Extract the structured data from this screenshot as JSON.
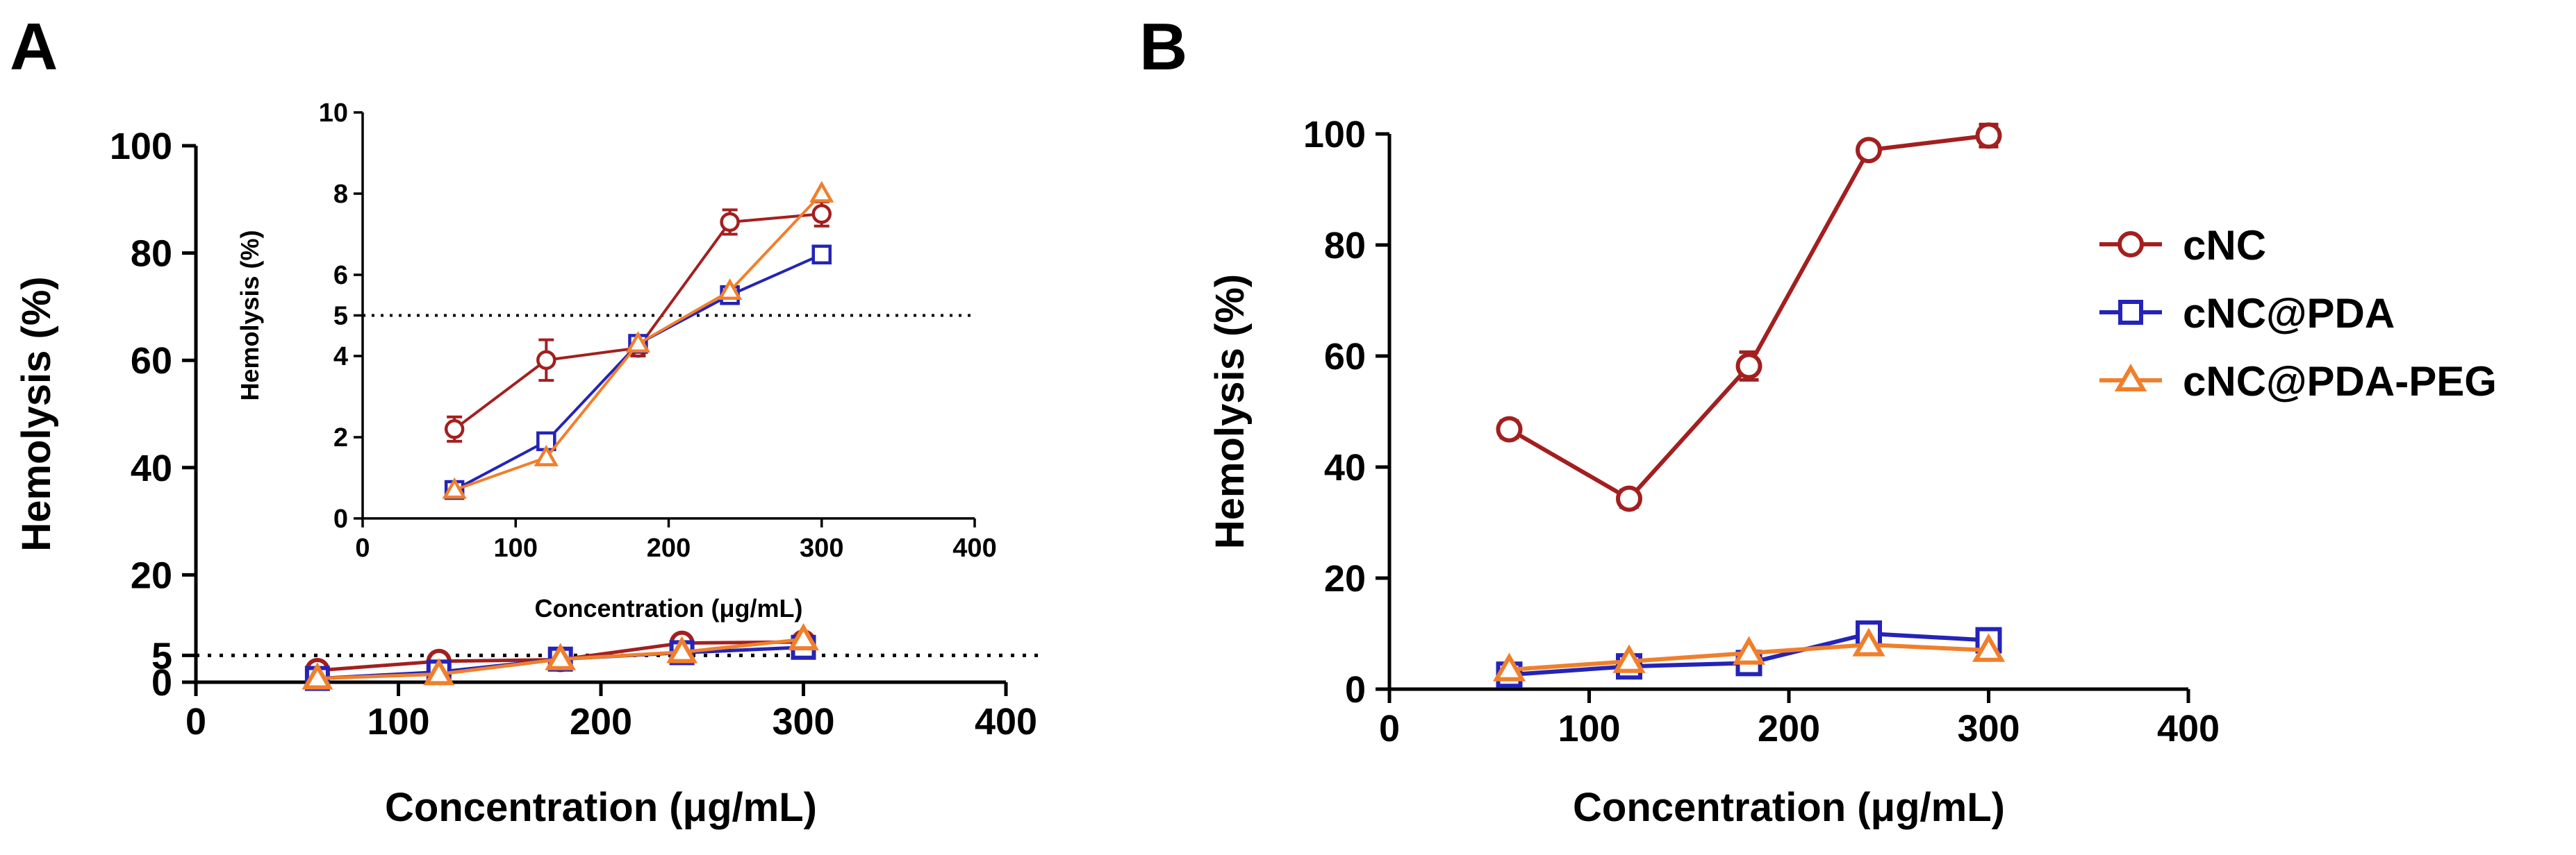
{
  "figure": {
    "colors": {
      "cNC": "#a31f1f",
      "cNC@PDA": "#2424b8",
      "cNC@PDA-PEG": "#f07f2c",
      "threshold": "#000000"
    },
    "legend": [
      {
        "name": "cNC",
        "marker": "circle"
      },
      {
        "name": "cNC@PDA",
        "marker": "square"
      },
      {
        "name": "cNC@PDA-PEG",
        "marker": "triangle"
      }
    ]
  },
  "chart_data": [
    {
      "id": "A",
      "panel_label": "A",
      "type": "line",
      "xlabel": "Concentration (μg/mL)",
      "ylabel": "Hemolysis (%)",
      "xlim": [
        0,
        400
      ],
      "ylim": [
        0,
        100
      ],
      "xticks": [
        "0",
        "100",
        "200",
        "300",
        "400"
      ],
      "xtick_values": [
        0,
        100,
        200,
        300,
        400
      ],
      "yticks": [
        "0",
        "5",
        "20",
        "40",
        "60",
        "80",
        "100"
      ],
      "ytick_values": [
        0,
        5,
        20,
        40,
        60,
        80,
        100
      ],
      "threshold": 5,
      "x": [
        60,
        120,
        180,
        240,
        300
      ],
      "series": [
        {
          "name": "cNC",
          "marker": "circle",
          "values": [
            2.2,
            3.9,
            4.2,
            7.3,
            7.5
          ],
          "errors": [
            0.3,
            0.5,
            0.2,
            0.3,
            0.3
          ]
        },
        {
          "name": "cNC@PDA",
          "marker": "square",
          "values": [
            0.7,
            1.9,
            4.3,
            5.5,
            6.5
          ],
          "errors": [
            0,
            0,
            0,
            0,
            0
          ]
        },
        {
          "name": "cNC@PDA-PEG",
          "marker": "triangle",
          "values": [
            0.7,
            1.5,
            4.3,
            5.6,
            8.0
          ],
          "errors": [
            0,
            0,
            0,
            0,
            0
          ]
        }
      ]
    },
    {
      "id": "A-inset",
      "type": "line",
      "xlabel": "Concentration (μg/mL)",
      "ylabel": "Hemolysis (%)",
      "xlim": [
        0,
        400
      ],
      "ylim": [
        0,
        10
      ],
      "xticks": [
        "0",
        "100",
        "200",
        "300",
        "400"
      ],
      "xtick_values": [
        0,
        100,
        200,
        300,
        400
      ],
      "yticks": [
        "0",
        "2",
        "4",
        "5",
        "6",
        "8",
        "10"
      ],
      "ytick_values": [
        0,
        2,
        4,
        5,
        6,
        8,
        10
      ],
      "threshold": 5,
      "x": [
        60,
        120,
        180,
        240,
        300
      ],
      "series": [
        {
          "name": "cNC",
          "marker": "circle",
          "values": [
            2.2,
            3.9,
            4.2,
            7.3,
            7.5
          ],
          "errors": [
            0.3,
            0.5,
            0.2,
            0.3,
            0.3
          ]
        },
        {
          "name": "cNC@PDA",
          "marker": "square",
          "values": [
            0.7,
            1.9,
            4.3,
            5.5,
            6.5
          ],
          "errors": [
            0,
            0,
            0,
            0,
            0
          ]
        },
        {
          "name": "cNC@PDA-PEG",
          "marker": "triangle",
          "values": [
            0.7,
            1.5,
            4.3,
            5.6,
            8.0
          ],
          "errors": [
            0,
            0,
            0,
            0,
            0
          ]
        }
      ]
    },
    {
      "id": "B",
      "panel_label": "B",
      "type": "line",
      "xlabel": "Concentration (μg/mL)",
      "ylabel": "Hemolysis (%)",
      "xlim": [
        0,
        400
      ],
      "ylim": [
        0,
        100
      ],
      "xticks": [
        "0",
        "100",
        "200",
        "300",
        "400"
      ],
      "xtick_values": [
        0,
        100,
        200,
        300,
        400
      ],
      "yticks": [
        "0",
        "20",
        "40",
        "60",
        "80",
        "100"
      ],
      "ytick_values": [
        0,
        20,
        40,
        60,
        80,
        100
      ],
      "x": [
        60,
        120,
        180,
        240,
        300
      ],
      "legend_position": "right",
      "series": [
        {
          "name": "cNC",
          "marker": "circle",
          "values": [
            46.8,
            34.3,
            58.2,
            97.1,
            99.7
          ],
          "errors": [
            1.5,
            1.5,
            2.5,
            1.0,
            2.0
          ]
        },
        {
          "name": "cNC@PDA",
          "marker": "square",
          "values": [
            2.6,
            4.1,
            4.7,
            10.0,
            8.8
          ],
          "errors": [
            0.5,
            0.8,
            0.8,
            1.0,
            1.0
          ]
        },
        {
          "name": "cNC@PDA-PEG",
          "marker": "triangle",
          "values": [
            3.5,
            5.0,
            6.5,
            8.0,
            7.0
          ],
          "errors": [
            0,
            0,
            0,
            0,
            0
          ]
        }
      ]
    }
  ]
}
